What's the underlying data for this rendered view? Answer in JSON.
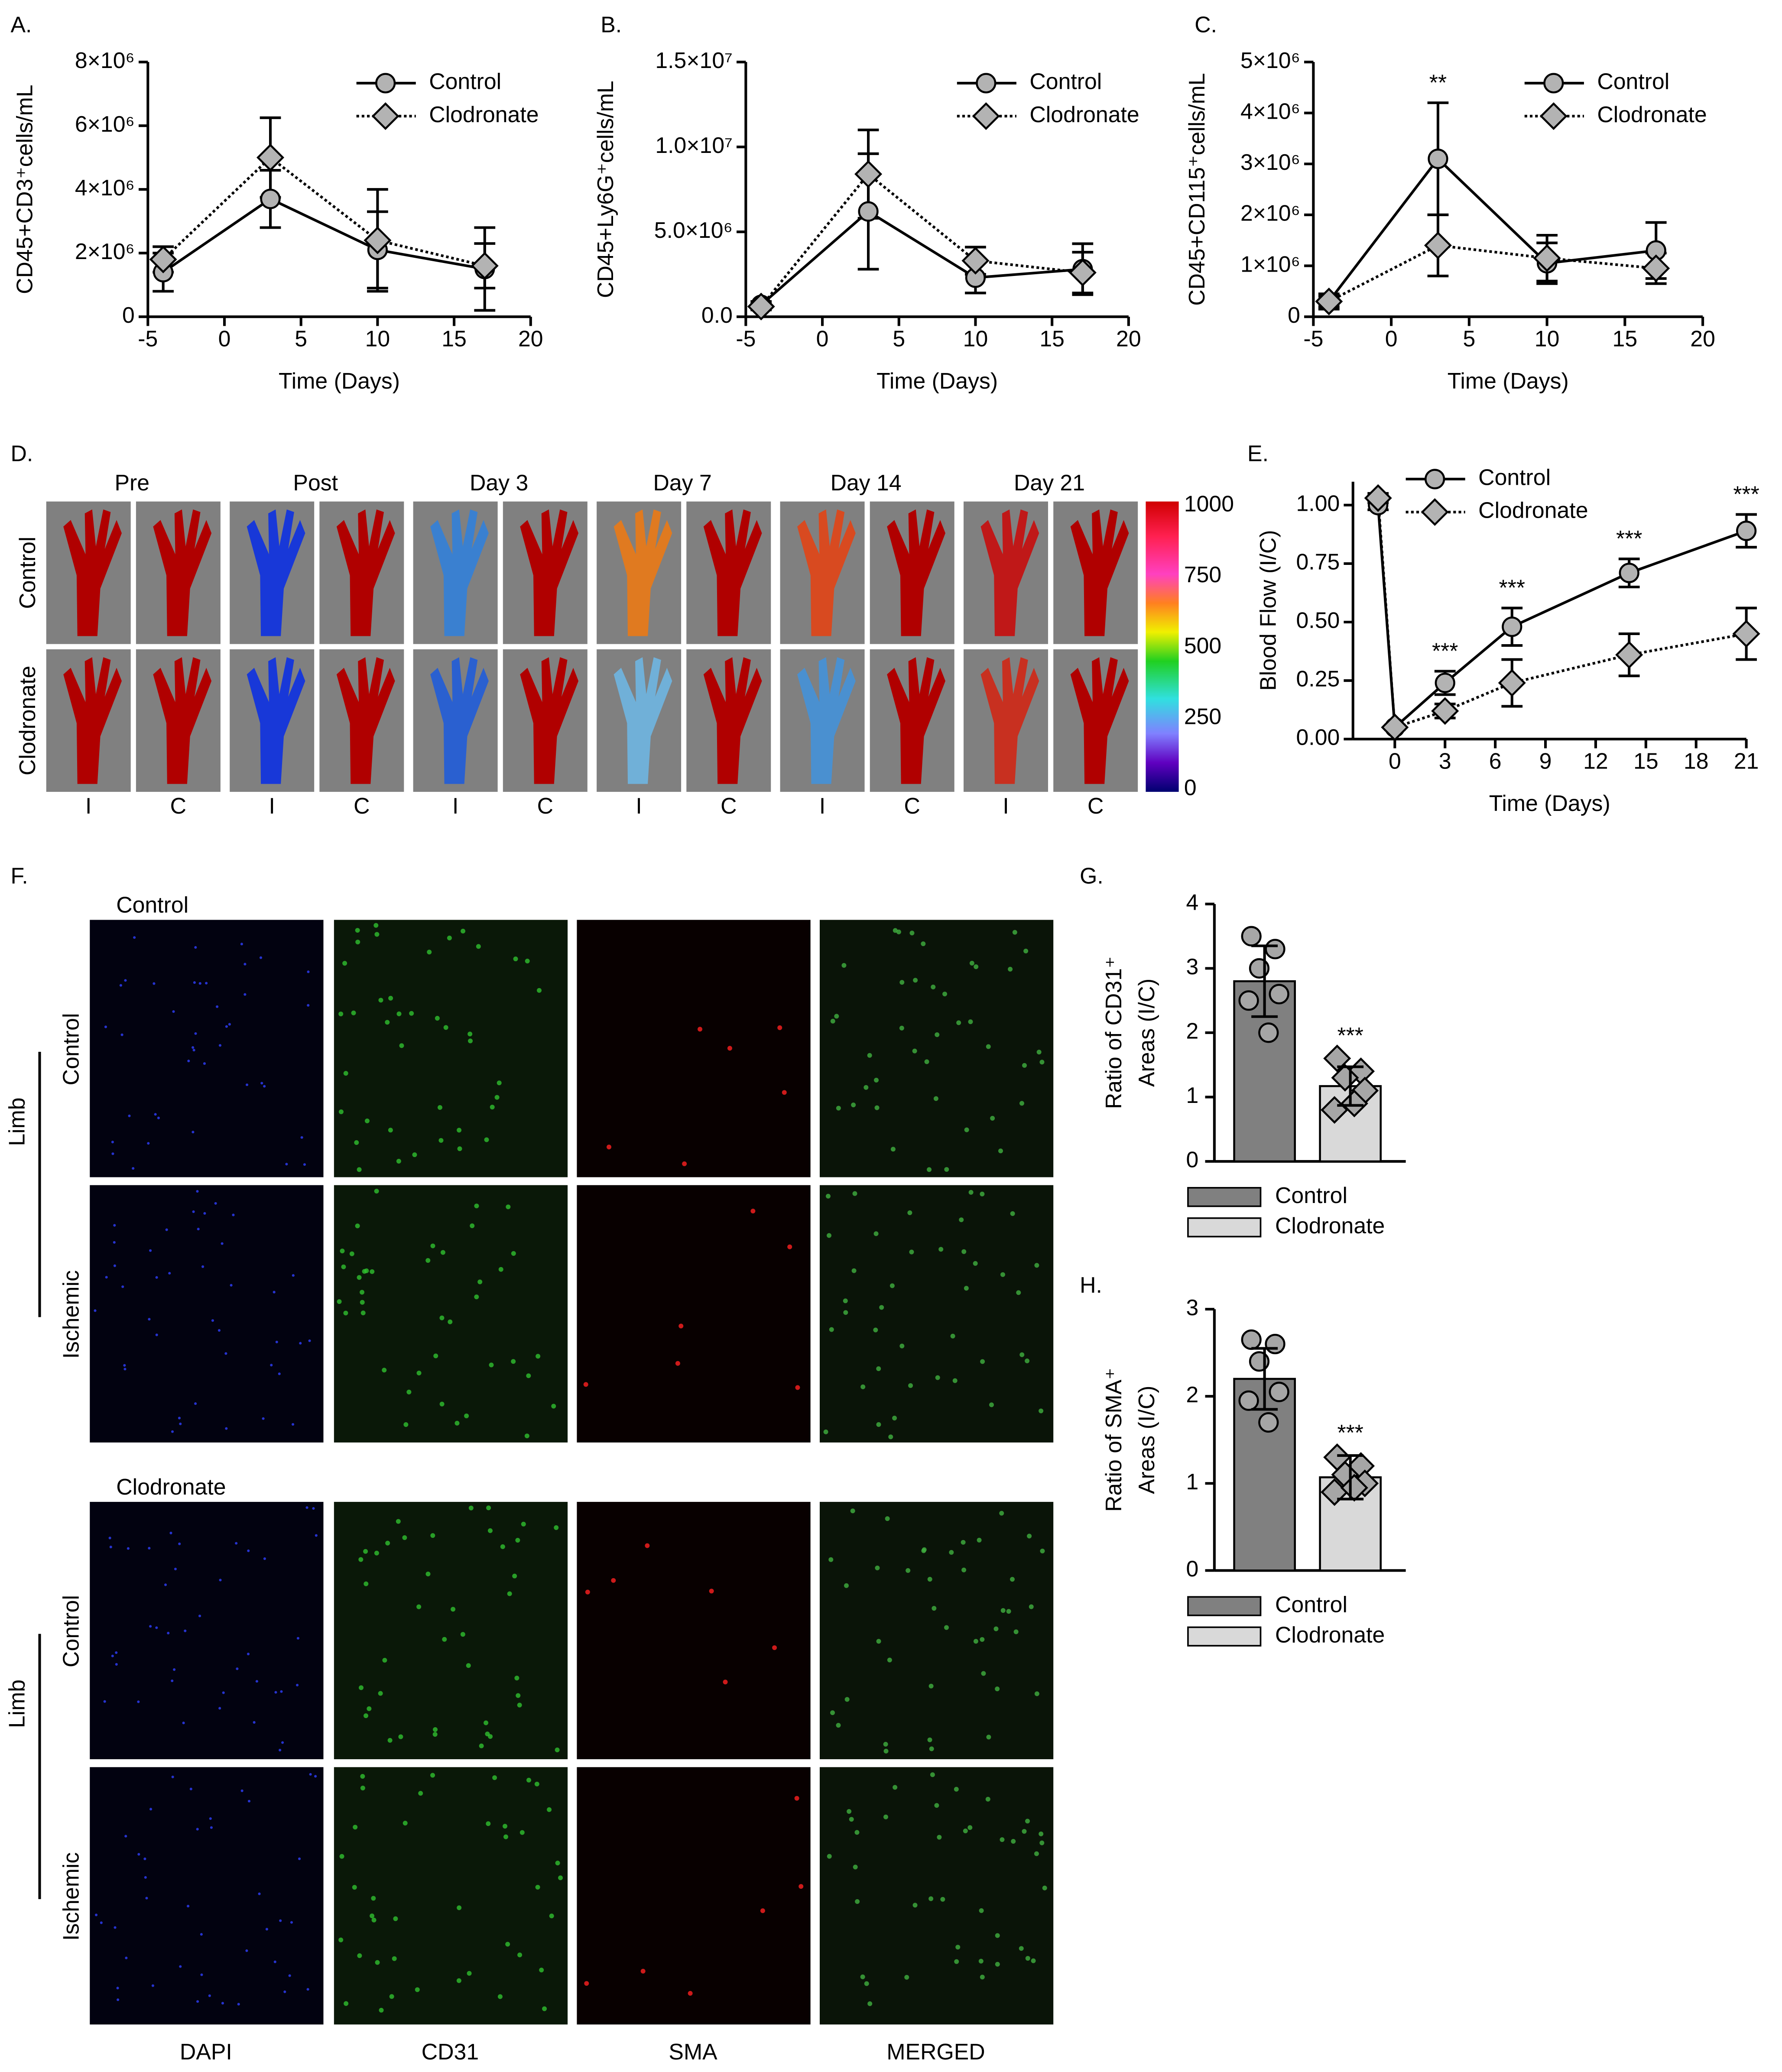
{
  "chart_data": [
    {
      "type": "line",
      "panel_label": "A.",
      "xlabel": "Time (Days)",
      "ylabel": "CD45+CD3⁺cells/mL",
      "x": [
        -4,
        3,
        10,
        17
      ],
      "xlim": [
        -5,
        20
      ],
      "xticks": [
        -5,
        0,
        5,
        10,
        15,
        20
      ],
      "ylim": [
        0,
        8000000
      ],
      "yticks": [
        0,
        {
          "value": 2000000,
          "label": "2×10⁶"
        },
        {
          "value": 4000000,
          "label": "4×10⁶"
        },
        {
          "value": 6000000,
          "label": "6×10⁶"
        },
        {
          "value": 8000000,
          "label": "8×10⁶"
        }
      ],
      "series": [
        {
          "name": "Control",
          "color": "#b3b3b3",
          "marker": "circle",
          "dash": "solid",
          "values": [
            1400000,
            3700000,
            2100000,
            1500000
          ],
          "errors": [
            600000,
            900000,
            1200000,
            1300000
          ]
        },
        {
          "name": "Clodronate",
          "color": "#b3b3b3",
          "marker": "diamond",
          "dash": "dotted",
          "values": [
            1800000,
            5000000,
            2400000,
            1600000
          ],
          "errors": [
            400000,
            1250000,
            1600000,
            700000
          ]
        }
      ]
    },
    {
      "type": "line",
      "panel_label": "B.",
      "xlabel": "Time (Days)",
      "ylabel": "CD45+Ly6G⁺cells/mL",
      "x": [
        -4,
        3,
        10,
        17
      ],
      "xlim": [
        -5,
        20
      ],
      "xticks": [
        -5,
        0,
        5,
        10,
        15,
        20
      ],
      "ylim": [
        0,
        15000000
      ],
      "yticks": [
        {
          "value": 0,
          "label": "0.0"
        },
        {
          "value": 5000000,
          "label": "5.0×10⁶"
        },
        {
          "value": 10000000,
          "label": "1.0×10⁷"
        },
        {
          "value": 15000000,
          "label": "1.5×10⁷"
        }
      ],
      "series": [
        {
          "name": "Control",
          "color": "#b3b3b3",
          "marker": "circle",
          "dash": "solid",
          "values": [
            700000,
            6200000,
            2300000,
            2800000
          ],
          "errors": [
            200000,
            3400000,
            900000,
            1500000
          ]
        },
        {
          "name": "Clodronate",
          "color": "#b3b3b3",
          "marker": "diamond",
          "dash": "dotted",
          "values": [
            600000,
            8400000,
            3300000,
            2600000
          ],
          "errors": [
            200000,
            2600000,
            800000,
            1200000
          ]
        }
      ]
    },
    {
      "type": "line",
      "panel_label": "C.",
      "xlabel": "Time (Days)",
      "ylabel": "CD45+CD115⁺cells/mL",
      "x": [
        -4,
        3,
        10,
        17
      ],
      "xlim": [
        -5,
        20
      ],
      "xticks": [
        -5,
        0,
        5,
        10,
        15,
        20
      ],
      "ylim": [
        0,
        5000000
      ],
      "yticks": [
        0,
        {
          "value": 1000000,
          "label": "1×10⁶"
        },
        {
          "value": 2000000,
          "label": "2×10⁶"
        },
        {
          "value": 3000000,
          "label": "3×10⁶"
        },
        {
          "value": 4000000,
          "label": "4×10⁶"
        },
        {
          "value": 5000000,
          "label": "5×10⁶"
        }
      ],
      "annotations": [
        {
          "x": 3,
          "text": "**"
        }
      ],
      "series": [
        {
          "name": "Control",
          "color": "#b3b3b3",
          "marker": "circle",
          "dash": "solid",
          "values": [
            300000,
            3100000,
            1050000,
            1300000
          ],
          "errors": [
            150000,
            1100000,
            400000,
            550000
          ]
        },
        {
          "name": "Clodronate",
          "color": "#b3b3b3",
          "marker": "diamond",
          "dash": "dotted",
          "values": [
            300000,
            1400000,
            1150000,
            950000
          ],
          "errors": [
            100000,
            600000,
            450000,
            300000
          ]
        }
      ]
    },
    {
      "type": "line",
      "panel_label": "E.",
      "xlabel": "Time (Days)",
      "ylabel": "Blood Flow (I/C)",
      "x": [
        -1,
        0,
        3,
        7,
        14,
        21
      ],
      "xlim": [
        -2.5,
        21
      ],
      "xticks": [
        0,
        3,
        6,
        9,
        12,
        15,
        18,
        21
      ],
      "ylim": [
        0,
        1.1
      ],
      "yticks": [
        {
          "value": 0,
          "label": "0.00"
        },
        {
          "value": 0.25,
          "label": "0.25"
        },
        {
          "value": 0.5,
          "label": "0.50"
        },
        {
          "value": 0.75,
          "label": "0.75"
        },
        {
          "value": 1,
          "label": "1.00"
        }
      ],
      "annotations": [
        {
          "x": 3,
          "text": "***"
        },
        {
          "x": 7,
          "text": "***"
        },
        {
          "x": 14,
          "text": "***"
        },
        {
          "x": 21,
          "text": "***"
        }
      ],
      "series": [
        {
          "name": "Control",
          "color": "#b3b3b3",
          "marker": "circle",
          "dash": "solid",
          "values": [
            1.0,
            0.05,
            0.24,
            0.48,
            0.71,
            0.89
          ],
          "errors": [
            0.02,
            0.01,
            0.05,
            0.08,
            0.06,
            0.07
          ]
        },
        {
          "name": "Clodronate",
          "color": "#b3b3b3",
          "marker": "diamond",
          "dash": "dotted",
          "values": [
            1.03,
            0.05,
            0.12,
            0.24,
            0.36,
            0.45
          ],
          "errors": [
            0.02,
            0.01,
            0.03,
            0.1,
            0.09,
            0.11
          ]
        }
      ]
    },
    {
      "type": "bar",
      "panel_label": "G.",
      "ylabel": [
        "Ratio of CD31⁺",
        "Areas (I/C)"
      ],
      "categories": [
        "Control",
        "Clodronate"
      ],
      "colors": [
        "#808080",
        "#d9d9d9"
      ],
      "point_color": "#a6a6a6",
      "point_markers": [
        "circle",
        "diamond"
      ],
      "values": [
        2.8,
        1.17
      ],
      "errors": [
        0.55,
        0.3
      ],
      "points": [
        [
          3.5,
          3.3,
          3.0,
          2.6,
          2.5,
          2.0
        ],
        [
          1.6,
          1.4,
          1.3,
          1.1,
          0.8,
          0.9
        ]
      ],
      "ylim": [
        0,
        4
      ],
      "yticks": [
        0,
        1,
        2,
        3,
        4
      ],
      "annotations": [
        {
          "category": "Clodronate",
          "text": "***"
        }
      ]
    },
    {
      "type": "bar",
      "panel_label": "H.",
      "ylabel": [
        "Ratio of SMA⁺",
        "Areas (I/C)"
      ],
      "categories": [
        "Control",
        "Clodronate"
      ],
      "colors": [
        "#808080",
        "#d9d9d9"
      ],
      "point_color": "#a6a6a6",
      "point_markers": [
        "circle",
        "diamond"
      ],
      "values": [
        2.2,
        1.07
      ],
      "errors": [
        0.35,
        0.25
      ],
      "points": [
        [
          2.65,
          2.6,
          2.4,
          2.05,
          1.95,
          1.7
        ],
        [
          1.3,
          1.2,
          1.1,
          1.0,
          0.9,
          0.95
        ]
      ],
      "ylim": [
        0,
        3
      ],
      "yticks": [
        0,
        1,
        2,
        3
      ],
      "annotations": [
        {
          "category": "Clodronate",
          "text": "***"
        }
      ]
    }
  ],
  "panel_d": {
    "panel_label": "D.",
    "timepoints": [
      "Pre",
      "Post",
      "Day 3",
      "Day 7",
      "Day 14",
      "Day 21"
    ],
    "rows": [
      "Control",
      "Clodronate"
    ],
    "limbs": [
      "I",
      "C"
    ],
    "scale_ticks": [
      0,
      250,
      500,
      750,
      1000
    ]
  },
  "panel_f": {
    "panel_label": "F.",
    "groups": [
      {
        "title": "Control",
        "side": "Limb",
        "rows": [
          "Control",
          "Ischemic"
        ]
      },
      {
        "title": "Clodronate",
        "side": "Limb",
        "rows": [
          "Control",
          "Ischemic"
        ]
      }
    ],
    "channels": [
      {
        "name": "DAPI",
        "color": "#2566c8"
      },
      {
        "name": "CD31",
        "color": "#1fa845"
      },
      {
        "name": "SMA",
        "color": "#e02020"
      },
      {
        "name": "MERGED",
        "color": "#000000"
      }
    ]
  }
}
